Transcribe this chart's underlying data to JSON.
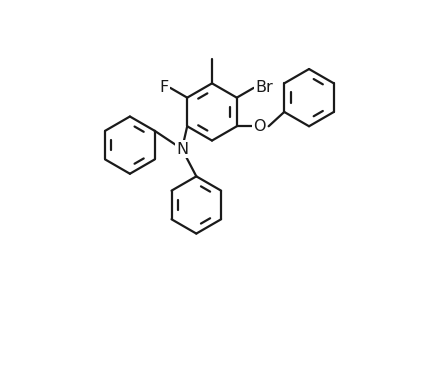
{
  "bg_color": "#ffffff",
  "line_color": "#1a1a1a",
  "lw": 1.6,
  "fs": 11.5,
  "R": 0.44,
  "xlim": [
    -3.0,
    3.5
  ],
  "ylim": [
    -3.6,
    2.2
  ]
}
